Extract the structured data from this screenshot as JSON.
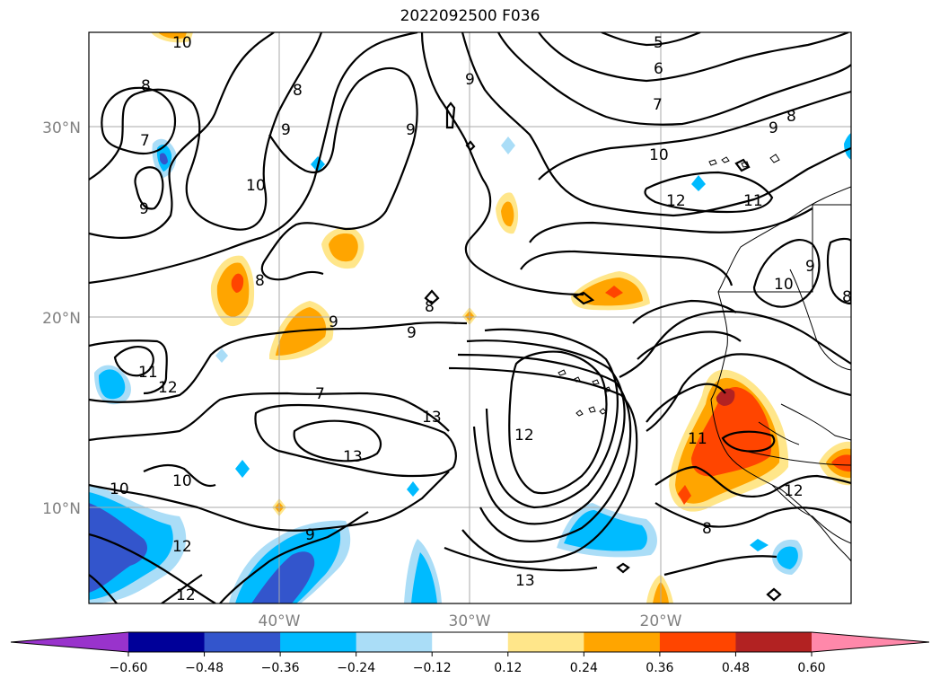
{
  "title": "2022092500 F036",
  "map": {
    "lat_labels": [
      "30°N",
      "20°N",
      "10°N"
    ],
    "lon_labels": [
      "40°W",
      "30°W",
      "20°W"
    ],
    "contour_labels": [
      "10",
      "5",
      "6",
      "7",
      "8",
      "9",
      "8",
      "9",
      "9",
      "8",
      "9",
      "7",
      "9",
      "10",
      "10",
      "12",
      "11",
      "9",
      "10",
      "8",
      "8",
      "9",
      "8",
      "9",
      "11",
      "12",
      "7",
      "13",
      "12",
      "13",
      "11",
      "12",
      "10",
      "10",
      "12",
      "9",
      "8",
      "13",
      "12"
    ]
  },
  "colorbar": {
    "ticks": [
      "−0.60",
      "−0.48",
      "−0.36",
      "−0.24",
      "−0.12",
      "0.12",
      "0.24",
      "0.36",
      "0.48",
      "0.60"
    ],
    "colors": [
      "#9933cc",
      "#000099",
      "#3355cc",
      "#00bbff",
      "#aaddf7",
      "#ffffff",
      "#ffe68a",
      "#ffa500",
      "#ff4500",
      "#b22222",
      "#ff88aa"
    ]
  }
}
